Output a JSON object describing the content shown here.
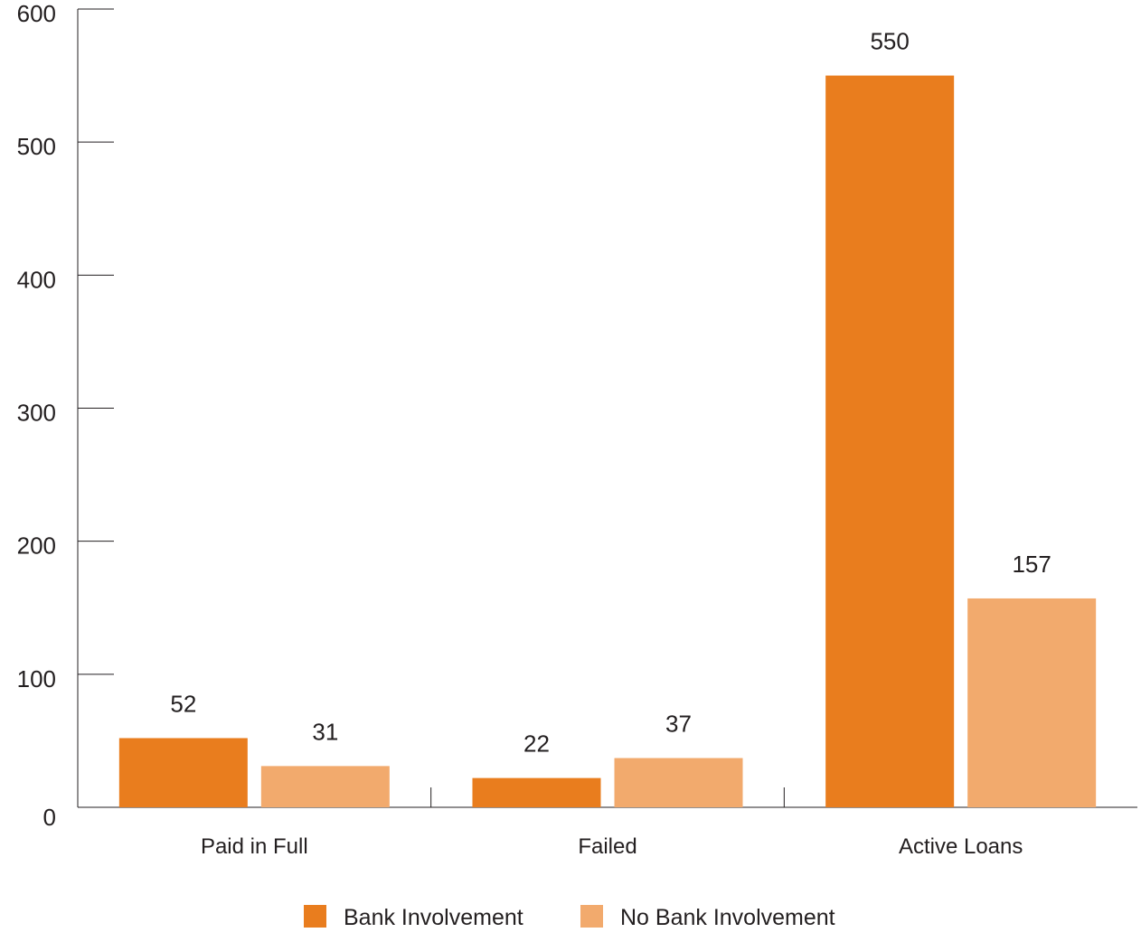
{
  "chart_data": {
    "type": "bar",
    "categories": [
      "Paid in Full",
      "Failed",
      "Active Loans"
    ],
    "series": [
      {
        "name": "Bank Involvement",
        "values": [
          52,
          22,
          550
        ],
        "color": "#e97d1e"
      },
      {
        "name": "No Bank Involvement",
        "values": [
          31,
          37,
          157
        ],
        "color": "#f2aa6d"
      }
    ],
    "title": "",
    "xlabel": "",
    "ylabel": "",
    "ylim": [
      0,
      600
    ],
    "yticks": [
      0,
      100,
      200,
      300,
      400,
      500,
      600
    ],
    "grid": false,
    "legend": "bottom-center",
    "data_labels": true
  }
}
